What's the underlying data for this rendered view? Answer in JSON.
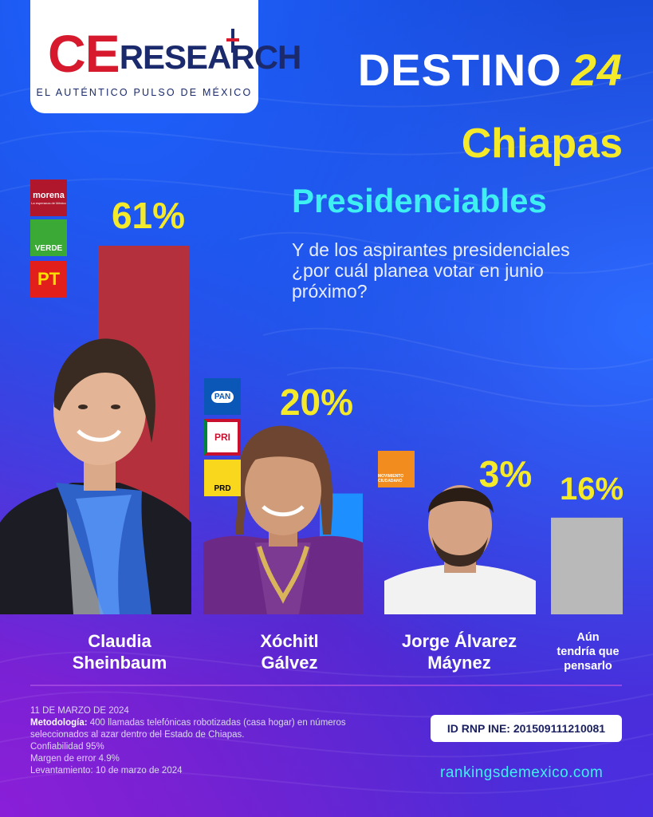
{
  "brand": {
    "logo_ce": "CE",
    "logo_research": "RESEARCH",
    "tagline": "EL AUTÉNTICO PULSO DE MÉXICO"
  },
  "headline": {
    "word": "DESTINO",
    "number": "24"
  },
  "state": "Chiapas",
  "subtitle": "Presidenciables",
  "question": "Y de los aspirantes presidenciales ¿por cuál planea votar en junio próximo?",
  "parties": {
    "morena": "morena",
    "morena_sub": "La esperanza de México",
    "verde": "VERDE",
    "pt": "PT",
    "pan": "PAN",
    "pri": "PRI",
    "prd": "PRD",
    "mc": "MOVIMIENTO CIUDADANO"
  },
  "chart_data": {
    "type": "bar",
    "categories": [
      "Claudia Sheinbaum",
      "Xóchitl Gálvez",
      "Jorge Álvarez Máynez",
      "Aún tendría que pensarlo"
    ],
    "values": [
      61,
      20,
      3,
      16
    ],
    "labels": [
      "61%",
      "20%",
      "3%",
      "16%"
    ],
    "colors": [
      "#b5303d",
      "#1e8fff",
      "#f28c1e",
      "#b9b9b9"
    ],
    "ylim": [
      0,
      61
    ],
    "grid": false
  },
  "candidates": [
    {
      "name_line1": "Claudia",
      "name_line2": "Sheinbaum"
    },
    {
      "name_line1": "Xóchitl",
      "name_line2": "Gálvez"
    },
    {
      "name_line1": "Jorge Álvarez",
      "name_line2": "Máynez"
    },
    {
      "name_line1": "Aún",
      "name_line2": "tendría que",
      "name_line3": "pensarlo"
    }
  ],
  "footer": {
    "date": "11 DE MARZO DE 2024",
    "methodology_label": "Metodología:",
    "methodology_text": "400 llamadas telefónicas robotizadas (casa hogar) en números seleccionados al azar dentro del Estado de Chiapas.",
    "confidence": "Confiabilidad 95%",
    "margin": "Margen de error 4.9%",
    "survey": "Levantamiento: 10 de marzo de 2024",
    "rnp": "ID RNP INE:  201509111210081",
    "website": "rankingsdemexico.com"
  }
}
